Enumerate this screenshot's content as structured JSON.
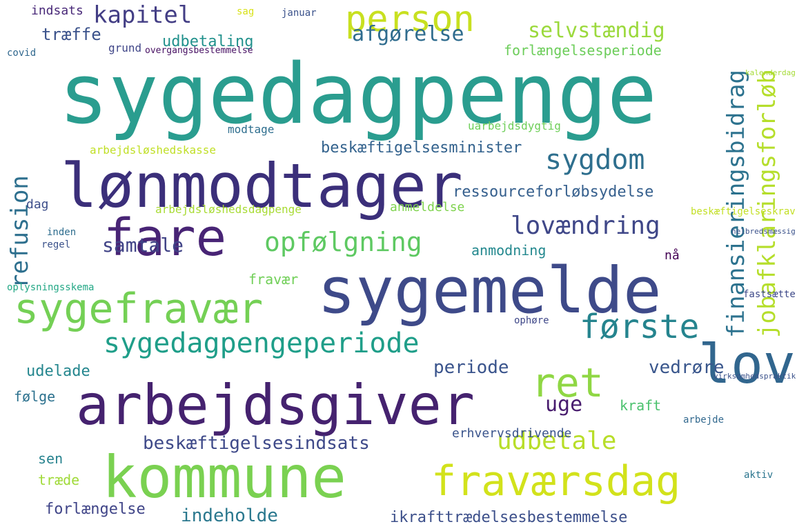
{
  "words": [
    {
      "text": "sygedagpenge",
      "color": "#2a9d8f"
    },
    {
      "text": "lønmodtager",
      "color": "#3b2f7a"
    },
    {
      "text": "sygemelde",
      "color": "#3e4a89"
    },
    {
      "text": "kommune",
      "color": "#7ad151"
    },
    {
      "text": "arbejdsgiver",
      "color": "#45226f"
    },
    {
      "text": "fare",
      "color": "#482475"
    },
    {
      "text": "person",
      "color": "#c8e020"
    },
    {
      "text": "fraværsdag",
      "color": "#d2e21b"
    },
    {
      "text": "sygefravær",
      "color": "#74d055"
    },
    {
      "text": "sygedagpengeperiode",
      "color": "#1f9e89"
    },
    {
      "text": "lov",
      "color": "#31668e"
    },
    {
      "text": "ret",
      "color": "#8fd744"
    },
    {
      "text": "jobafklaringsforløb",
      "color": "#b5de2b"
    },
    {
      "text": "finansieringsbidrag",
      "color": "#2c728e"
    },
    {
      "text": "refusion",
      "color": "#2d6f8e"
    },
    {
      "text": "kapitel",
      "color": "#433e85"
    },
    {
      "text": "sygdom",
      "color": "#2e6f8e"
    },
    {
      "text": "opfølgning",
      "color": "#5ec962"
    },
    {
      "text": "lovændring",
      "color": "#3f4788"
    },
    {
      "text": "første",
      "color": "#25848e"
    },
    {
      "text": "udbetale",
      "color": "#b8de29"
    },
    {
      "text": "afgørelse",
      "color": "#2f6c8e"
    },
    {
      "text": "selvstændig",
      "color": "#9bd93c"
    },
    {
      "text": "forlængelsesperiode",
      "color": "#6ccd5a"
    },
    {
      "text": "udbetaling",
      "color": "#21918c"
    },
    {
      "text": "træffe",
      "color": "#3b528b"
    },
    {
      "text": "samtale",
      "color": "#414487"
    },
    {
      "text": "beskæftigelsesindsats",
      "color": "#3e4989"
    },
    {
      "text": "ressourceforløbsydelse",
      "color": "#355f8d"
    },
    {
      "text": "beskæftigelsesminister",
      "color": "#33628d"
    },
    {
      "text": "uge",
      "color": "#481c6e"
    },
    {
      "text": "periode",
      "color": "#3a548c"
    },
    {
      "text": "vedrøre",
      "color": "#39568c"
    },
    {
      "text": "indeholde",
      "color": "#2a788e"
    },
    {
      "text": "ikrafttrædelsesbestemmelse",
      "color": "#3c4f8a"
    },
    {
      "text": "forlængelse",
      "color": "#404588"
    },
    {
      "text": "udelade",
      "color": "#24868e"
    },
    {
      "text": "anmodning",
      "color": "#23888e"
    },
    {
      "text": "fravær",
      "color": "#70cf57"
    },
    {
      "text": "kraft",
      "color": "#4ac16d"
    },
    {
      "text": "dag",
      "color": "#3d4e8a"
    },
    {
      "text": "følge",
      "color": "#2c718e"
    },
    {
      "text": "sen",
      "color": "#26828e"
    },
    {
      "text": "træde",
      "color": "#a0da39"
    },
    {
      "text": "anmeldelse",
      "color": "#7fd34e"
    },
    {
      "text": "erhvervsdrivende",
      "color": "#3a548c"
    },
    {
      "text": "arbejdsløshedsdagpenge",
      "color": "#a8db34"
    },
    {
      "text": "arbejdsløshedskasse",
      "color": "#c0df25"
    },
    {
      "text": "modtage",
      "color": "#2e6e8e"
    },
    {
      "text": "uarbejdsdygtig",
      "color": "#6ece58"
    },
    {
      "text": "indsats",
      "color": "#482878"
    },
    {
      "text": "grund",
      "color": "#404688"
    },
    {
      "text": "overgangsbestemmelse",
      "color": "#471063"
    },
    {
      "text": "inden",
      "color": "#2e6d8e"
    },
    {
      "text": "regel",
      "color": "#3b528b"
    },
    {
      "text": "oplysningsskema",
      "color": "#22a785"
    },
    {
      "text": "nå",
      "color": "#440154"
    },
    {
      "text": "fastsætte",
      "color": "#3e4989"
    },
    {
      "text": "beskæftigelseskrav",
      "color": "#c2df23"
    },
    {
      "text": "arbejde",
      "color": "#31688e"
    },
    {
      "text": "aktiv",
      "color": "#2b758e"
    },
    {
      "text": "ophøre",
      "color": "#3f4889"
    },
    {
      "text": "januar",
      "color": "#3b528b"
    },
    {
      "text": "sag",
      "color": "#d8e219"
    },
    {
      "text": "covid",
      "color": "#31688e"
    },
    {
      "text": "kalenderdag",
      "color": "#a5db36"
    },
    {
      "text": "helbredsmæssig",
      "color": "#3b528b"
    },
    {
      "text": "virksomhedspraktik",
      "color": "#3b528b"
    }
  ]
}
